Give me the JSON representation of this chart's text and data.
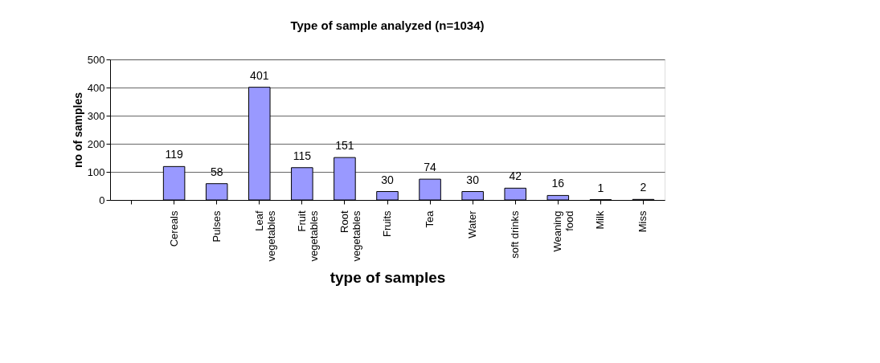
{
  "chart_data": {
    "type": "bar",
    "title": "Type of sample analyzed (n=1034)",
    "xlabel": "type of samples",
    "ylabel": "no of samples",
    "categories": [
      null,
      "Cereals",
      "Pulses",
      "Leaf vegetables",
      "Fruit vegetables",
      "Root vegetables",
      "Fruits",
      "Tea",
      "Water",
      "soft drinks",
      "Weaning food",
      "Milk",
      "Miss"
    ],
    "values": [
      null,
      119,
      58,
      401,
      115,
      151,
      30,
      74,
      30,
      42,
      16,
      1,
      2
    ],
    "color": "#9999ff",
    "ylim": [
      0,
      500
    ],
    "yticks": [
      0,
      100,
      200,
      300,
      400,
      500
    ],
    "grid": "y",
    "data_labels": true
  }
}
